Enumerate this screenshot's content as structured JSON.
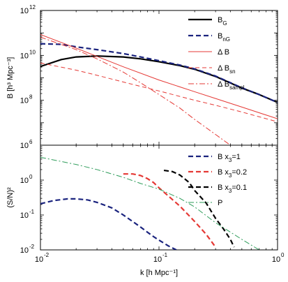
{
  "chart_data": [
    {
      "type": "line",
      "title": "",
      "xlabel": "k [h Mpc⁻¹]",
      "ylabel": "B [h³ Mpc⁻³]",
      "xscale": "log",
      "yscale": "log",
      "xlim": [
        0.01,
        1
      ],
      "ylim": [
        1000000,
        1000000000000
      ],
      "x_ticks": [
        {
          "value": 0.01,
          "base": "10",
          "exp": "-2"
        },
        {
          "value": 0.1,
          "base": "10",
          "exp": "-1"
        },
        {
          "value": 1,
          "base": "10",
          "exp": "0"
        }
      ],
      "y_ticks": [
        {
          "value": 1000000,
          "base": "10",
          "exp": "6"
        },
        {
          "value": 100000000,
          "base": "10",
          "exp": "8"
        },
        {
          "value": 10000000000,
          "base": "10",
          "exp": "10"
        },
        {
          "value": 1000000000000,
          "base": "10",
          "exp": "12"
        }
      ],
      "legend_position": "top-right",
      "series": [
        {
          "name": "B",
          "sub": "G",
          "color": "#000000",
          "dash": "solid",
          "width": 2.2,
          "x": [
            0.01,
            0.015,
            0.02,
            0.03,
            0.05,
            0.07,
            0.1,
            0.15,
            0.2,
            0.3,
            0.5,
            0.7,
            1.0
          ],
          "y": [
            3200000000.0,
            6500000000.0,
            8500000000.0,
            9400000000.0,
            8500000000.0,
            7000000000.0,
            5200000000.0,
            3500000000.0,
            2400000000.0,
            1150000000.0,
            350000000.0,
            180000000.0,
            80000000.0
          ]
        },
        {
          "name": "B",
          "sub": "nG",
          "color": "#1a237e",
          "dash": "7,4",
          "width": 2.2,
          "x": [
            0.01,
            0.015,
            0.02,
            0.03,
            0.05,
            0.07,
            0.1,
            0.15,
            0.2,
            0.3,
            0.5,
            0.7,
            1.0
          ],
          "y": [
            33000000000.0,
            31000000000.0,
            24000000000.0,
            18000000000.0,
            12000000000.0,
            8500000000.0,
            5800000000.0,
            3700000000.0,
            2500000000.0,
            1200000000.0,
            360000000.0,
            180000000.0,
            80000000.0
          ]
        },
        {
          "name": "Δ B",
          "sub": "",
          "color": "#e53935",
          "dash": "solid",
          "width": 1,
          "x": [
            0.01,
            0.02,
            0.03,
            0.05,
            0.1,
            0.2,
            0.3,
            0.5,
            1.0
          ],
          "y": [
            85000000000.0,
            21000000000.0,
            9000000000.0,
            3100000000.0,
            800000000.0,
            240000000.0,
            120000000.0,
            50000000.0,
            15000000.0
          ]
        },
        {
          "name": "Δ B",
          "sub": "sn",
          "color": "#e53935",
          "dash": "6,4",
          "width": 1,
          "x": [
            0.01,
            0.02,
            0.03,
            0.05,
            0.1,
            0.2,
            0.3,
            0.5,
            1.0
          ],
          "y": [
            4600000000.0,
            2200000000.0,
            1300000000.0,
            650000000.0,
            260000000.0,
            100000000.0,
            60000000.0,
            30000000.0,
            11000000.0
          ]
        },
        {
          "name": "Δ B",
          "sub": "sampl",
          "color": "#e53935",
          "dash": "8,3,2,3",
          "width": 1,
          "x": [
            0.01,
            0.02,
            0.03,
            0.05,
            0.07,
            0.1,
            0.15,
            0.2,
            0.3,
            0.4
          ],
          "y": [
            65000000000.0,
            18000000000.0,
            7000000000.0,
            1800000000.0,
            600000000.0,
            180000000.0,
            45000000.0,
            14000000.0,
            3000000.0,
            1000000.0
          ]
        }
      ]
    },
    {
      "type": "line",
      "title": "",
      "xlabel": "k [h Mpc⁻¹]",
      "ylabel": "(S/N)²",
      "xscale": "log",
      "yscale": "log",
      "xlim": [
        0.01,
        1
      ],
      "ylim": [
        0.01,
        10
      ],
      "x_ticks": [
        {
          "value": 0.01,
          "base": "10",
          "exp": "-2"
        },
        {
          "value": 0.1,
          "base": "10",
          "exp": "-1"
        },
        {
          "value": 1,
          "base": "10",
          "exp": "0"
        }
      ],
      "y_ticks": [
        {
          "value": 0.01,
          "base": "10",
          "exp": "-2"
        },
        {
          "value": 0.1,
          "base": "10",
          "exp": "-1"
        },
        {
          "value": 1,
          "base": "10",
          "exp": "0"
        }
      ],
      "legend_position": "top-right",
      "series": [
        {
          "name": "B x",
          "sub": "3",
          "suffix": "=1",
          "color": "#1a237e",
          "dash": "7,4",
          "width": 2.2,
          "x": [
            0.01,
            0.013,
            0.017,
            0.02,
            0.025,
            0.03,
            0.04,
            0.05,
            0.06,
            0.07,
            0.08,
            0.09,
            0.1,
            0.12,
            0.14
          ],
          "y": [
            0.21,
            0.26,
            0.29,
            0.29,
            0.27,
            0.23,
            0.16,
            0.1,
            0.065,
            0.045,
            0.032,
            0.024,
            0.019,
            0.013,
            0.01
          ]
        },
        {
          "name": "B x",
          "sub": "3",
          "suffix": "=0.2",
          "color": "#e53935",
          "dash": "7,4",
          "width": 2.2,
          "x": [
            0.05,
            0.06,
            0.07,
            0.08,
            0.09,
            0.1,
            0.12,
            0.15,
            0.2,
            0.25,
            0.3
          ],
          "y": [
            1.5,
            1.5,
            1.35,
            1.1,
            0.85,
            0.6,
            0.35,
            0.18,
            0.065,
            0.028,
            0.012
          ]
        },
        {
          "name": "B x",
          "sub": "3",
          "suffix": "=0.1",
          "color": "#000000",
          "dash": "7,4",
          "width": 2.2,
          "x": [
            0.11,
            0.13,
            0.15,
            0.18,
            0.2,
            0.25,
            0.3,
            0.35,
            0.4,
            0.43
          ],
          "y": [
            1.9,
            1.75,
            1.4,
            0.85,
            0.5,
            0.22,
            0.08,
            0.04,
            0.02,
            0.012
          ]
        },
        {
          "name": "P",
          "sub": "",
          "suffix": "",
          "color": "#2e9c5a",
          "dash": "8,3,2,3",
          "width": 1,
          "x": [
            0.01,
            0.02,
            0.03,
            0.05,
            0.07,
            0.1,
            0.15,
            0.2,
            0.3,
            0.5,
            0.7
          ],
          "y": [
            4.5,
            2.8,
            2.0,
            1.2,
            0.8,
            0.55,
            0.3,
            0.17,
            0.06,
            0.02,
            0.01
          ]
        }
      ]
    }
  ]
}
